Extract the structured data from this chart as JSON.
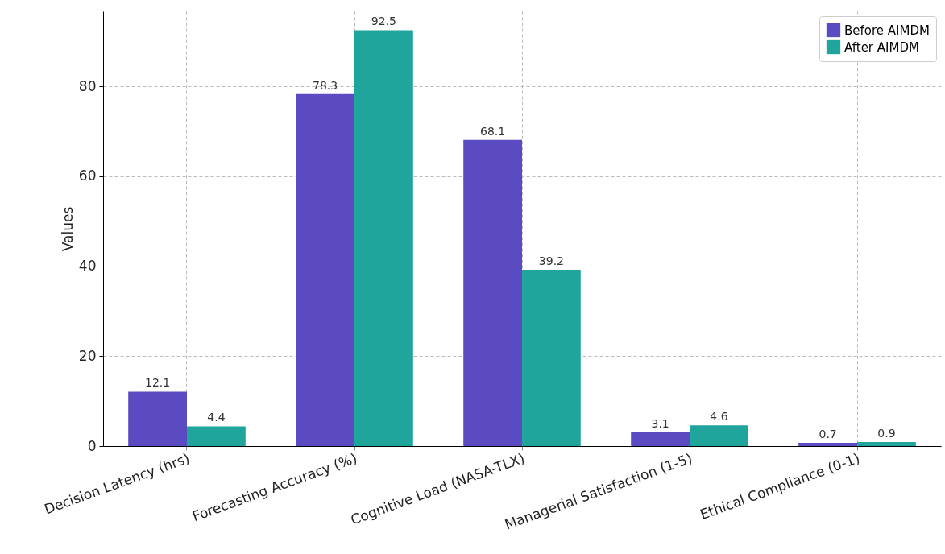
{
  "chart_data": {
    "type": "bar",
    "ylabel": "Values",
    "categories": [
      "Decision Latency (hrs)",
      "Forecasting Accuracy (%)",
      "Cognitive Load (NASA-TLX)",
      "Managerial Satisfaction (1-5)",
      "Ethical Compliance (0-1)"
    ],
    "series": [
      {
        "name": "Before AIMDM",
        "color": "#5b4bc2",
        "values": [
          12.1,
          78.3,
          68.1,
          3.1,
          0.7
        ]
      },
      {
        "name": "After AIMDM",
        "color": "#1fa59b",
        "values": [
          4.4,
          92.5,
          39.2,
          4.6,
          0.9
        ]
      }
    ],
    "ylim": [
      0,
      96.7
    ],
    "yticks": [
      0,
      20,
      40,
      60,
      80
    ],
    "grid": true,
    "legend": "top right",
    "data_labels": true
  }
}
